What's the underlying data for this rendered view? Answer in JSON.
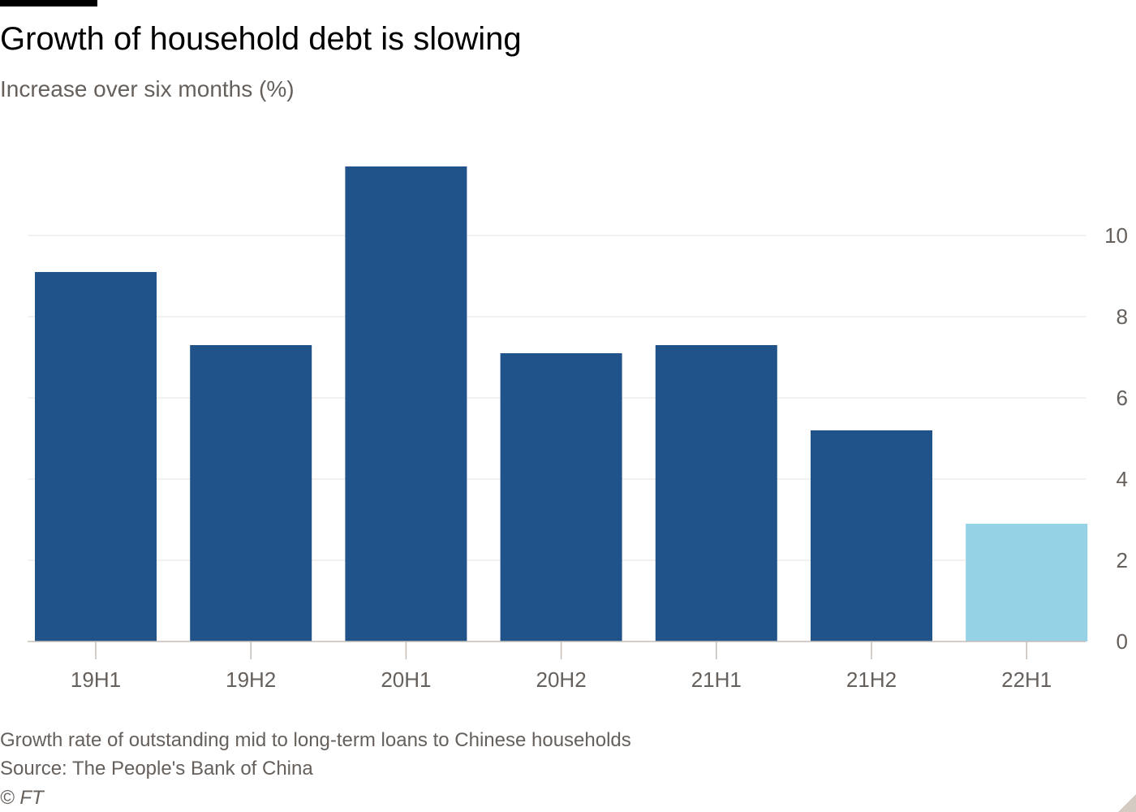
{
  "title": "Growth of household debt is slowing",
  "subtitle": "Increase over six months (%)",
  "footer": {
    "note": "Growth rate of outstanding mid to long-term loans to Chinese households",
    "source": "Source: The People's Bank of China",
    "copyright": "© FT"
  },
  "colors": {
    "bar": "#20538a",
    "highlight": "#96d2e6",
    "grid": "#e9e2db",
    "axis": "#c6bdb5",
    "tick_text": "#66605c"
  },
  "chart_data": {
    "type": "bar",
    "title": "Growth of household debt is slowing",
    "subtitle": "Increase over six months (%)",
    "xlabel": "",
    "ylabel": "",
    "categories": [
      "19H1",
      "19H2",
      "20H1",
      "20H2",
      "21H1",
      "21H2",
      "22H1"
    ],
    "values": [
      9.1,
      7.3,
      11.7,
      7.1,
      7.3,
      5.2,
      2.9
    ],
    "highlight_index": 6,
    "ylim": [
      0,
      12
    ],
    "yticks": [
      0,
      2,
      4,
      6,
      8,
      10
    ],
    "y_axis_position": "right",
    "grid": true,
    "legend": "none"
  }
}
